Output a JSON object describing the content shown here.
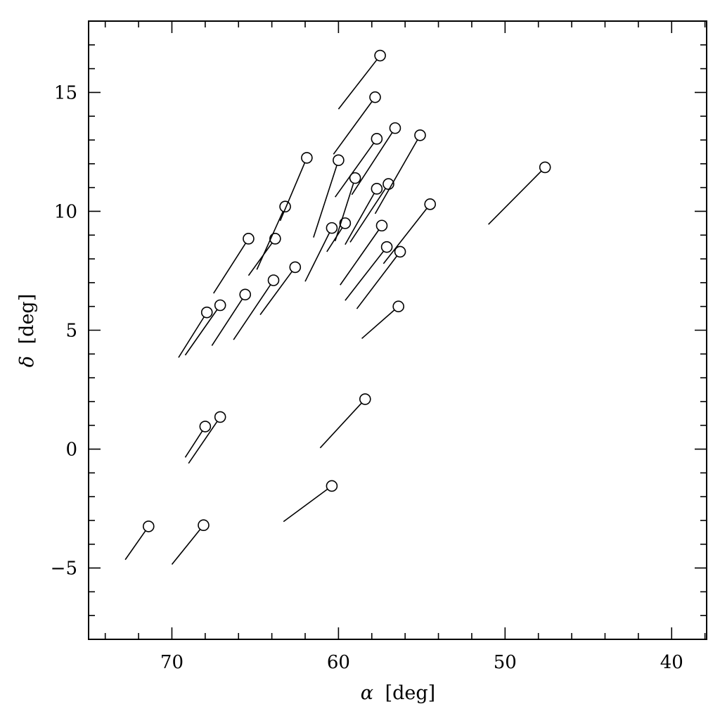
{
  "chart_data": {
    "type": "scatter",
    "title": "",
    "xlabel": "[deg]",
    "xlabel_symbol": "α",
    "ylabel": "[deg]",
    "ylabel_symbol": "δ",
    "xlim": [
      75.0,
      37.9
    ],
    "ylim": [
      -8.0,
      18.0
    ],
    "x_reversed": true,
    "grid": false,
    "x_ticks": [
      70,
      60,
      50,
      40
    ],
    "x_tick_labels": [
      "70",
      "60",
      "50",
      "40"
    ],
    "y_ticks": [
      -5,
      0,
      5,
      10,
      15
    ],
    "y_tick_labels": [
      "−5",
      "0",
      "5",
      "10",
      "15"
    ],
    "marker": "open-circle",
    "points": [
      {
        "x": 57.5,
        "y": 16.55,
        "tail_x": 60.0,
        "tail_y": 14.3
      },
      {
        "x": 57.8,
        "y": 14.8,
        "tail_x": 60.3,
        "tail_y": 12.4
      },
      {
        "x": 56.6,
        "y": 13.5,
        "tail_x": 59.2,
        "tail_y": 10.7
      },
      {
        "x": 57.7,
        "y": 13.05,
        "tail_x": 60.2,
        "tail_y": 10.6
      },
      {
        "x": 55.1,
        "y": 13.2,
        "tail_x": 57.8,
        "tail_y": 9.9
      },
      {
        "x": 61.9,
        "y": 12.25,
        "tail_x": 63.5,
        "tail_y": 9.6
      },
      {
        "x": 60.0,
        "y": 12.15,
        "tail_x": 61.5,
        "tail_y": 8.9
      },
      {
        "x": 59.0,
        "y": 11.4,
        "tail_x": 60.2,
        "tail_y": 8.75
      },
      {
        "x": 57.7,
        "y": 10.95,
        "tail_x": 59.6,
        "tail_y": 8.6
      },
      {
        "x": 57.0,
        "y": 11.15,
        "tail_x": 59.3,
        "tail_y": 8.7
      },
      {
        "x": 47.6,
        "y": 11.85,
        "tail_x": 51.0,
        "tail_y": 9.45
      },
      {
        "x": 54.5,
        "y": 10.3,
        "tail_x": 57.3,
        "tail_y": 7.8
      },
      {
        "x": 63.2,
        "y": 10.2,
        "tail_x": 64.9,
        "tail_y": 7.55
      },
      {
        "x": 60.4,
        "y": 9.3,
        "tail_x": 62.0,
        "tail_y": 7.05
      },
      {
        "x": 59.6,
        "y": 9.5,
        "tail_x": 60.7,
        "tail_y": 8.3
      },
      {
        "x": 57.4,
        "y": 9.4,
        "tail_x": 59.9,
        "tail_y": 6.9
      },
      {
        "x": 65.4,
        "y": 8.85,
        "tail_x": 67.5,
        "tail_y": 6.55
      },
      {
        "x": 63.8,
        "y": 8.85,
        "tail_x": 65.4,
        "tail_y": 7.3
      },
      {
        "x": 57.1,
        "y": 8.5,
        "tail_x": 59.6,
        "tail_y": 6.25
      },
      {
        "x": 56.3,
        "y": 8.3,
        "tail_x": 58.9,
        "tail_y": 5.9
      },
      {
        "x": 62.6,
        "y": 7.65,
        "tail_x": 64.7,
        "tail_y": 5.65
      },
      {
        "x": 63.9,
        "y": 7.1,
        "tail_x": 66.3,
        "tail_y": 4.6
      },
      {
        "x": 65.6,
        "y": 6.5,
        "tail_x": 67.6,
        "tail_y": 4.35
      },
      {
        "x": 67.1,
        "y": 6.05,
        "tail_x": 69.2,
        "tail_y": 3.95
      },
      {
        "x": 67.9,
        "y": 5.75,
        "tail_x": 69.6,
        "tail_y": 3.85
      },
      {
        "x": 56.4,
        "y": 6.0,
        "tail_x": 58.6,
        "tail_y": 4.65
      },
      {
        "x": 58.4,
        "y": 2.1,
        "tail_x": 61.1,
        "tail_y": 0.05
      },
      {
        "x": 67.1,
        "y": 1.35,
        "tail_x": 69.0,
        "tail_y": -0.6
      },
      {
        "x": 68.0,
        "y": 0.95,
        "tail_x": 69.2,
        "tail_y": -0.35
      },
      {
        "x": 60.4,
        "y": -1.55,
        "tail_x": 63.3,
        "tail_y": -3.05
      },
      {
        "x": 71.4,
        "y": -3.25,
        "tail_x": 72.8,
        "tail_y": -4.65
      },
      {
        "x": 68.1,
        "y": -3.2,
        "tail_x": 70.0,
        "tail_y": -4.85
      }
    ]
  }
}
